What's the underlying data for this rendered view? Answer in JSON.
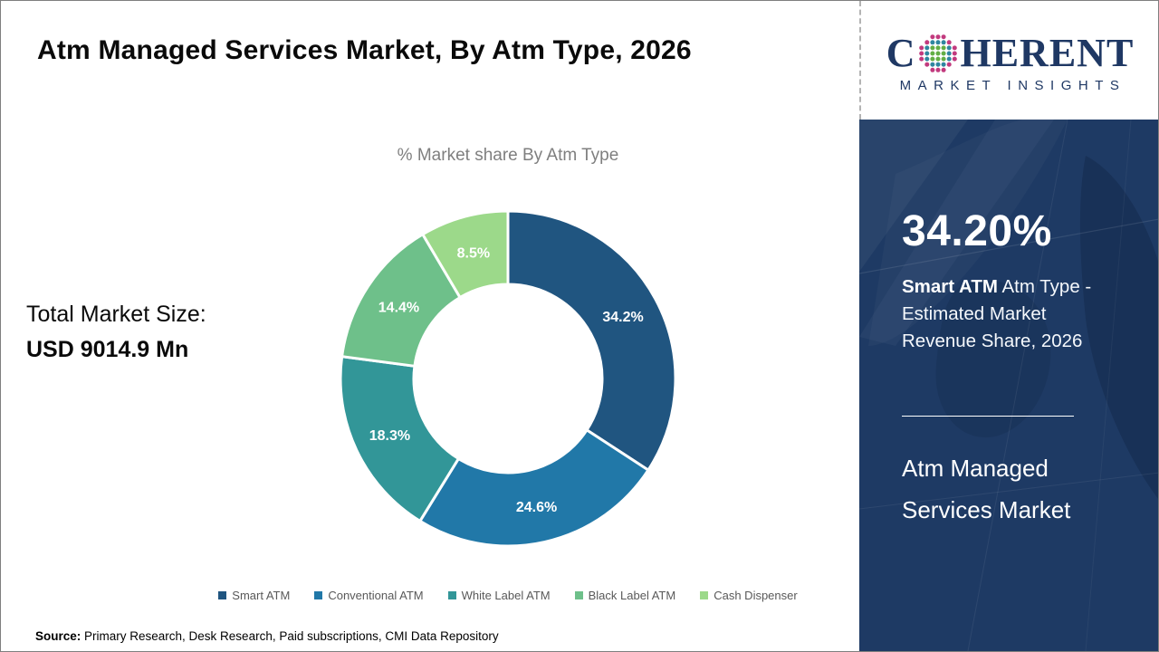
{
  "header": {
    "title": "Atm Managed Services Market, By Atm Type, 2026"
  },
  "chart_data": {
    "type": "pie",
    "subtype": "donut",
    "title": "% Market share By Atm Type",
    "categories": [
      "Smart ATM",
      "Conventional ATM",
      "White Label ATM",
      "Black Label ATM",
      "Cash Dispenser"
    ],
    "values": [
      34.2,
      24.6,
      18.3,
      14.4,
      8.5
    ],
    "labels": [
      "34.2%",
      "24.6%",
      "18.3%",
      "14.4%",
      "8.5%"
    ],
    "colors": [
      "#205580",
      "#2178a8",
      "#329698",
      "#6ec08a",
      "#9cd98a"
    ],
    "start_angle_deg_from_top": 0,
    "direction": "clockwise",
    "inner_radius_ratio": 0.56,
    "legend_position": "bottom",
    "label_color": "#ffffff"
  },
  "total_market": {
    "label": "Total Market Size:",
    "value": "USD 9014.9 Mn"
  },
  "sidebar": {
    "stat_value": "34.20%",
    "stat_highlight": "Smart ATM",
    "stat_rest": " Atm Type - Estimated Market Revenue Share, 2026",
    "market_name": "Atm Managed Services Market",
    "panel_color": "#1e3a64"
  },
  "logo": {
    "part1": "C",
    "part2": "HERENT",
    "line2": "MARKET INSIGHTS",
    "text_color": "#1f3864",
    "globe_colors": {
      "inner": "#63ae45",
      "middle": "#2f86a0",
      "outer": "#c23a7e"
    }
  },
  "source": {
    "label": "Source:",
    "text": " Primary Research, Desk Research, Paid subscriptions, CMI Data Repository"
  }
}
